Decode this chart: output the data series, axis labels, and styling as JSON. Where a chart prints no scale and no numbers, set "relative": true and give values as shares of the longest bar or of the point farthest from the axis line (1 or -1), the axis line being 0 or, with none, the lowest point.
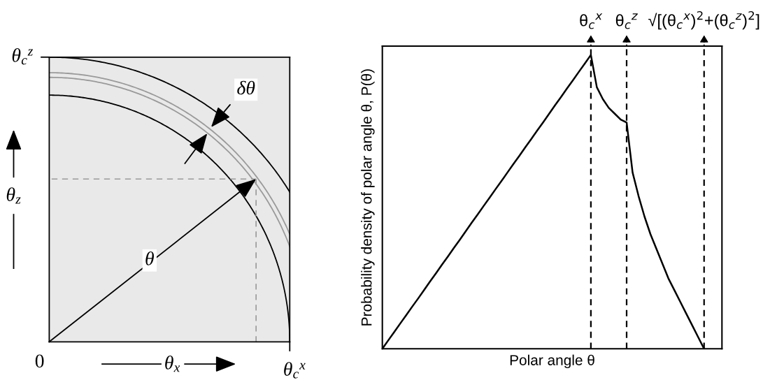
{
  "chart_data": [
    {
      "type": "line",
      "xlabel": "Polar angle θ",
      "ylabel": "Probability density of polar angle θ, P(θ)",
      "relative": true,
      "grid": "x",
      "categories": [
        null,
        null,
        null,
        null,
        null,
        null,
        null,
        null,
        null,
        null,
        null,
        null,
        null,
        null,
        null,
        null,
        null,
        null,
        null,
        null,
        null,
        null,
        null,
        null,
        null,
        null,
        null,
        null,
        null,
        null,
        null,
        null,
        null,
        null,
        null,
        "θ$_{c}$$^{x}$",
        null,
        null,
        null,
        null,
        null,
        "θ$_{c}$$^{z}$",
        null,
        null,
        null,
        null,
        null,
        null,
        null,
        null,
        null,
        null,
        null,
        null,
        "√[(θ$_{c}$$^{x}$)$^{2}$+(θ$_{c}$$^{z}$)$^{2}$]",
        null,
        null,
        null
      ],
      "series": [
        {
          "color": "#000000",
          "values": [
            0,
            0.029,
            0.057,
            0.086,
            0.114,
            0.143,
            0.171,
            0.2,
            0.229,
            0.257,
            0.286,
            0.314,
            0.343,
            0.371,
            0.4,
            0.429,
            0.457,
            0.486,
            0.514,
            0.543,
            0.571,
            0.6,
            0.629,
            0.657,
            0.686,
            0.714,
            0.743,
            0.771,
            0.8,
            0.829,
            0.857,
            0.886,
            0.914,
            0.943,
            0.971,
            1,
            0.89,
            0.85,
            0.82,
            0.8,
            0.78,
            0.77,
            0.6,
            0.52,
            0.45,
            0.39,
            0.34,
            0.29,
            0.24,
            0.2,
            0.16,
            0.12,
            0.08,
            0.04,
            0,
            null,
            null,
            null
          ]
        }
      ]
    },
    {
      "type": "other",
      "xlabel": "θ$_{x}$",
      "ylabel": "θ$_{z}$",
      "annotations": [
        "θ$_{c}$$^{z}$",
        "0",
        "θ$_{c}$$^{x}$",
        "δθ",
        "θ"
      ]
    }
  ]
}
